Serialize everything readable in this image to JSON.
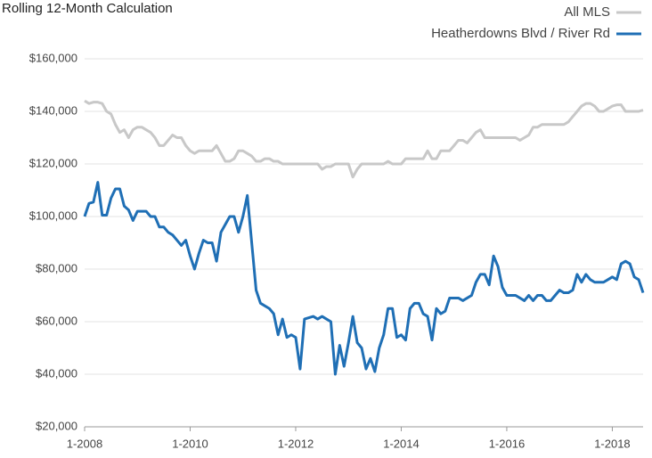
{
  "chart_data": {
    "type": "line",
    "title": "Rolling 12-Month Calculation",
    "categories": [
      "1-2008",
      null,
      null,
      null,
      null,
      null,
      null,
      null,
      null,
      null,
      null,
      null,
      null,
      null,
      null,
      null,
      null,
      null,
      null,
      null,
      null,
      null,
      null,
      null,
      "1-2010",
      null,
      null,
      null,
      null,
      null,
      null,
      null,
      null,
      null,
      null,
      null,
      null,
      null,
      null,
      null,
      null,
      null,
      null,
      null,
      null,
      null,
      null,
      null,
      "1-2012",
      null,
      null,
      null,
      null,
      null,
      null,
      null,
      null,
      null,
      null,
      null,
      null,
      null,
      null,
      null,
      null,
      null,
      null,
      null,
      null,
      null,
      null,
      null,
      "1-2014",
      null,
      null,
      null,
      null,
      null,
      null,
      null,
      null,
      null,
      null,
      null,
      null,
      null,
      null,
      null,
      null,
      null,
      null,
      null,
      null,
      null,
      null,
      null,
      "1-2016",
      null,
      null,
      null,
      null,
      null,
      null,
      null,
      null,
      null,
      null,
      null,
      null,
      null,
      null,
      null,
      null,
      null,
      null,
      null,
      null,
      null,
      null,
      null,
      "1-2018",
      null,
      null,
      null,
      null,
      null,
      null,
      null
    ],
    "series": [
      {
        "name": "All MLS",
        "color": "#c8c8c8",
        "values": [
          144000,
          143000,
          143500,
          143500,
          143000,
          140000,
          139000,
          135000,
          132000,
          133000,
          130000,
          133000,
          134000,
          134000,
          133000,
          132000,
          130000,
          127000,
          127000,
          129000,
          131000,
          130000,
          130000,
          127000,
          125000,
          124000,
          125000,
          125000,
          125000,
          125000,
          127000,
          124000,
          121000,
          121000,
          122000,
          125000,
          125000,
          124000,
          123000,
          121000,
          121000,
          122000,
          122000,
          121000,
          121000,
          120000,
          120000,
          120000,
          120000,
          120000,
          120000,
          120000,
          120000,
          120000,
          118000,
          119000,
          119000,
          120000,
          120000,
          120000,
          120000,
          115000,
          118000,
          120000,
          120000,
          120000,
          120000,
          120000,
          120000,
          121000,
          120000,
          120000,
          120000,
          122000,
          122000,
          122000,
          122000,
          122000,
          125000,
          122000,
          122000,
          125000,
          125000,
          125000,
          127000,
          129000,
          129000,
          128000,
          130000,
          132000,
          133000,
          130000,
          130000,
          130000,
          130000,
          130000,
          130000,
          130000,
          130000,
          129000,
          130000,
          131000,
          134000,
          134000,
          135000,
          135000,
          135000,
          135000,
          135000,
          135000,
          136000,
          138000,
          140000,
          142000,
          143000,
          143000,
          142000,
          140000,
          140000,
          141000,
          142000,
          142500,
          142500,
          140000,
          140000,
          140000,
          140000,
          140500
        ]
      },
      {
        "name": "Heatherdowns Blvd / River Rd",
        "color": "#1f6fb5",
        "values": [
          100000,
          105000,
          105500,
          113000,
          100500,
          100500,
          107000,
          110500,
          110500,
          104000,
          102500,
          98500,
          102000,
          102000,
          102000,
          100000,
          100000,
          96000,
          96000,
          94000,
          93000,
          91000,
          89000,
          91000,
          85000,
          80000,
          86000,
          91000,
          90000,
          90000,
          83000,
          94000,
          97000,
          100000,
          100000,
          94000,
          100000,
          108000,
          90000,
          72000,
          67000,
          66000,
          65000,
          63000,
          55000,
          61000,
          54000,
          55000,
          54000,
          42000,
          61000,
          61500,
          62000,
          61000,
          62000,
          61000,
          60000,
          40000,
          51000,
          43000,
          52000,
          62000,
          52000,
          50000,
          42000,
          46000,
          41000,
          50000,
          55000,
          65000,
          65000,
          54000,
          55000,
          53000,
          65000,
          67000,
          67000,
          63000,
          62000,
          53000,
          65000,
          63000,
          64000,
          69000,
          69000,
          69000,
          68000,
          69000,
          70000,
          75000,
          78000,
          78000,
          74000,
          85000,
          81000,
          73000,
          70000,
          70000,
          70000,
          69000,
          68000,
          70000,
          68000,
          70000,
          70000,
          68000,
          68000,
          70000,
          72000,
          71000,
          71000,
          72000,
          78000,
          75000,
          78000,
          76000,
          75000,
          75000,
          75000,
          76000,
          77000,
          76000,
          82000,
          83000,
          82000,
          77000,
          76000,
          71000
        ]
      }
    ],
    "ylim": [
      20000,
      160000
    ],
    "yticks": [
      {
        "value": 20000,
        "label": "$20,000"
      },
      {
        "value": 40000,
        "label": "$40,000"
      },
      {
        "value": 60000,
        "label": "$60,000"
      },
      {
        "value": 80000,
        "label": "$80,000"
      },
      {
        "value": 100000,
        "label": "$100,000"
      },
      {
        "value": 120000,
        "label": "$120,000"
      },
      {
        "value": 140000,
        "label": "$140,000"
      },
      {
        "value": 160000,
        "label": "$160,000"
      }
    ],
    "grid": true,
    "legend": "top-right"
  }
}
